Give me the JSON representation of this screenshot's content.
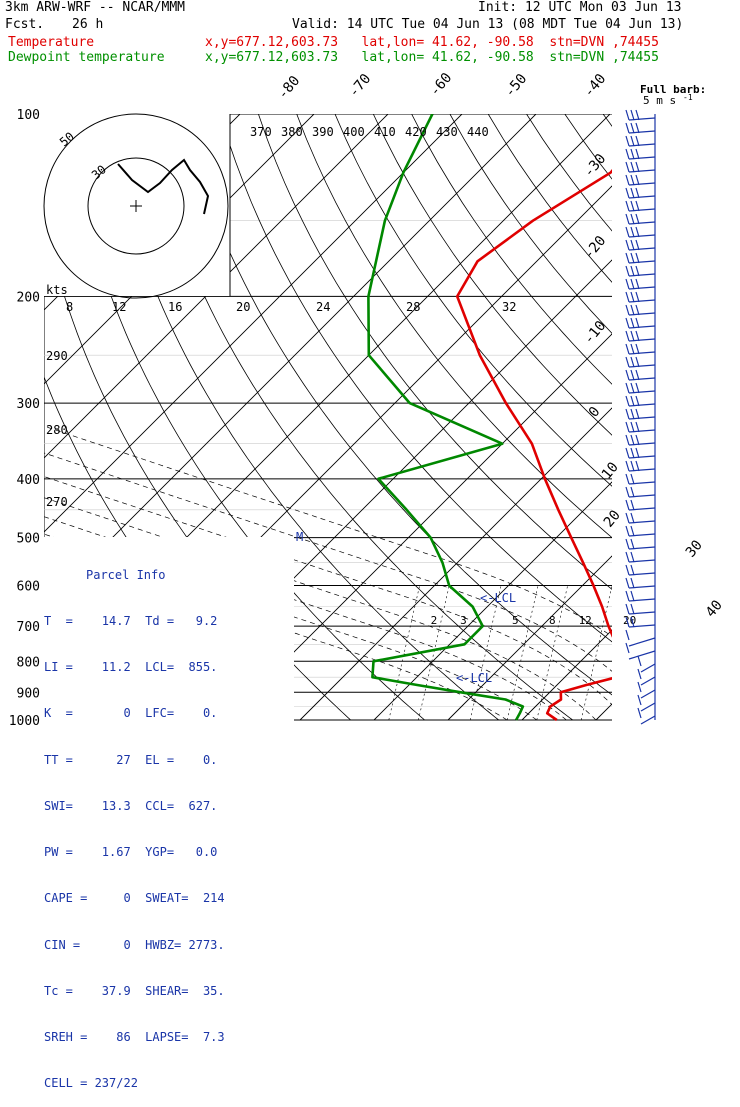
{
  "header": {
    "model": "3km ARW-WRF -- NCAR/MMM",
    "init": "Init: 12 UTC Mon 03 Jun 13",
    "fcst_label": "Fcst.",
    "fcst_value": "26 h",
    "valid": "Valid: 14 UTC Tue 04 Jun 13 (08 MDT Tue 04 Jun 13)",
    "temp_label": "Temperature",
    "temp_loc": "x,y=677.12,603.73   lat,lon= 41.62, -90.58  stn=DVN ,74455",
    "dew_label": "Dewpoint temperature",
    "dew_loc": "x,y=677.12,603.73   lat,lon= 41.62, -90.58  stn=DVN ,74455"
  },
  "colors": {
    "temperature": "#e00000",
    "dewpoint": "#008800",
    "parcel": "#1a35a8",
    "grid": "#000000"
  },
  "chart_data": {
    "type": "line",
    "subtype": "skew-t log-p diagram",
    "y_axis": {
      "quantity": "pressure",
      "scale": "log",
      "range": [
        1000,
        100
      ],
      "ticks": [
        100,
        200,
        300,
        400,
        500,
        600,
        700,
        800,
        900,
        1000
      ]
    },
    "x_axis": {
      "quantity": "temperature",
      "skew_labels": [
        -80,
        -70,
        -60,
        -50,
        -40,
        -30,
        -20,
        -10,
        0,
        10,
        20,
        30,
        40
      ]
    },
    "theta_labels_upper": [
      370,
      380,
      390,
      400,
      410,
      420,
      430,
      440
    ],
    "theta_labels_left": [
      290,
      280,
      270
    ],
    "mixing_ratio_labels": [
      2,
      3,
      5,
      8,
      12,
      20
    ],
    "hodograph": {
      "speed_labels": [
        8,
        12,
        16,
        20,
        24,
        28,
        32
      ],
      "unit": "kts",
      "ring_labels": [
        50,
        30
      ]
    },
    "barb_legend": {
      "title": "Full barb:",
      "value": "5 m s",
      "superscript": "-1"
    },
    "annotations": [
      "LCL",
      "LCL",
      "M"
    ],
    "series": [
      {
        "name": "Temperature",
        "points": [
          {
            "p": 1000,
            "t": 14.7
          },
          {
            "p": 975,
            "t": 12.5
          },
          {
            "p": 950,
            "t": 12.0
          },
          {
            "p": 925,
            "t": 12.5
          },
          {
            "p": 900,
            "t": 11.5
          },
          {
            "p": 875,
            "t": 14.0
          },
          {
            "p": 850,
            "t": 17.0
          },
          {
            "p": 800,
            "t": 16.0
          },
          {
            "p": 750,
            "t": 12.5
          },
          {
            "p": 700,
            "t": 9.0
          },
          {
            "p": 650,
            "t": 5.5
          },
          {
            "p": 600,
            "t": 1.5
          },
          {
            "p": 550,
            "t": -3.0
          },
          {
            "p": 500,
            "t": -8.0
          },
          {
            "p": 450,
            "t": -13.5
          },
          {
            "p": 400,
            "t": -19.5
          },
          {
            "p": 350,
            "t": -26.0
          },
          {
            "p": 300,
            "t": -35.0
          },
          {
            "p": 250,
            "t": -45.0
          },
          {
            "p": 200,
            "t": -56.0
          },
          {
            "p": 175,
            "t": -58.0
          },
          {
            "p": 150,
            "t": -56.0
          },
          {
            "p": 125,
            "t": -52.0
          },
          {
            "p": 100,
            "t": -53.0
          }
        ]
      },
      {
        "name": "Dewpoint temperature",
        "points": [
          {
            "p": 1000,
            "t": 9.2
          },
          {
            "p": 975,
            "t": 8.8
          },
          {
            "p": 950,
            "t": 8.3
          },
          {
            "p": 925,
            "t": 5.0
          },
          {
            "p": 900,
            "t": -2.0
          },
          {
            "p": 875,
            "t": -9.0
          },
          {
            "p": 850,
            "t": -16.0
          },
          {
            "p": 800,
            "t": -18.0
          },
          {
            "p": 750,
            "t": -8.0
          },
          {
            "p": 700,
            "t": -8.0
          },
          {
            "p": 650,
            "t": -12.0
          },
          {
            "p": 600,
            "t": -18.0
          },
          {
            "p": 550,
            "t": -22.0
          },
          {
            "p": 500,
            "t": -27.0
          },
          {
            "p": 450,
            "t": -34.0
          },
          {
            "p": 400,
            "t": -42.0
          },
          {
            "p": 350,
            "t": -30.0
          },
          {
            "p": 300,
            "t": -48.0
          },
          {
            "p": 250,
            "t": -60.0
          },
          {
            "p": 200,
            "t": -68.0
          },
          {
            "p": 150,
            "t": -76.0
          },
          {
            "p": 125,
            "t": -80.0
          },
          {
            "p": 100,
            "t": -84.0
          }
        ]
      }
    ]
  },
  "parcel_info": {
    "title": "Parcel Info",
    "rows": [
      "T  =    14.7  Td =   9.2",
      "LI =    11.2  LCL=  855.",
      "K  =       0  LFC=    0.",
      "TT =      27  EL =    0.",
      "SWI=    13.3  CCL=  627.",
      "PW =    1.67  YGP=   0.0",
      "CAPE =     0  SWEAT=  214",
      "CIN =      0  HWBZ= 2773.",
      "Tc =    37.9  SHEAR=  35.",
      "SREH =    86  LAPSE=  7.3",
      "CELL = 237/22"
    ]
  }
}
